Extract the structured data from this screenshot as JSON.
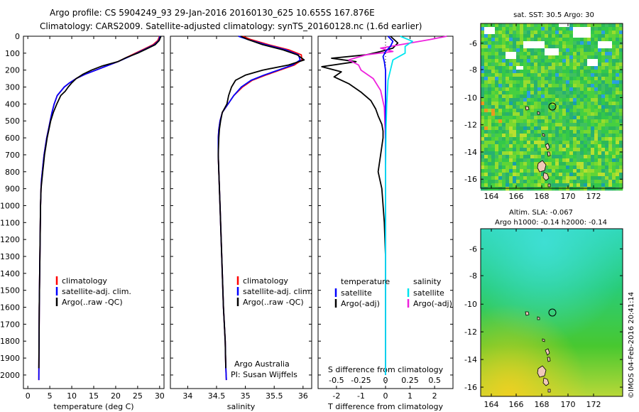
{
  "header": {
    "line1": "Argo profile: CS 5904249_93 29-Jan-2016 20160130_625 10.655S 167.876E",
    "line2": "Climatology: CARS2009. Satellite-adjusted climatology: synTS_20160128.nc (1.6d earlier)"
  },
  "colors": {
    "climatology": "#ff0000",
    "satellite": "#0000ff",
    "argo": "#000000",
    "salinity_sat": "#00e5ee",
    "salinity_argo": "#ee22dd"
  },
  "chart_data": [
    {
      "type": "line",
      "xlabel": "temperature (deg C)",
      "xlim": [
        -1,
        31
      ],
      "xticks": [
        0,
        5,
        10,
        15,
        20,
        25,
        30
      ],
      "ylim": [
        2080,
        0
      ],
      "yticks": [
        0,
        100,
        200,
        300,
        400,
        500,
        600,
        700,
        800,
        900,
        1000,
        1100,
        1200,
        1300,
        1400,
        1500,
        1600,
        1700,
        1800,
        1900,
        2000
      ],
      "legend": [
        "climatology",
        "satellite-adj. clim.",
        "Argo(..raw -QC)"
      ],
      "series": [
        {
          "name": "climatology",
          "x": [
            30.0,
            29.6,
            28.5,
            26.5,
            24.5,
            22.5,
            20.5,
            18.0,
            15.5,
            13.0,
            11.0,
            9.5,
            8.3,
            7.5,
            6.7,
            6.0,
            5.5,
            5.1,
            4.7,
            4.3,
            4.0,
            3.7,
            3.5,
            3.3,
            3.1,
            3.0,
            2.9,
            2.8,
            2.7,
            2.6,
            2.55,
            2.5
          ],
          "y": [
            0,
            25,
            50,
            75,
            100,
            125,
            150,
            175,
            200,
            225,
            250,
            275,
            300,
            325,
            350,
            400,
            450,
            500,
            550,
            600,
            650,
            700,
            750,
            800,
            850,
            900,
            1000,
            1200,
            1400,
            1600,
            1800,
            2030
          ]
        },
        {
          "name": "satellite-adj. clim.",
          "x": [
            30.1,
            29.8,
            28.8,
            26.8,
            24.8,
            22.7,
            20.5,
            18.0,
            15.5,
            13.0,
            11.0,
            9.5,
            8.3,
            7.5,
            6.7,
            6.0,
            5.5,
            5.1,
            4.7,
            4.3,
            4.0,
            3.7,
            3.5,
            3.3,
            3.1,
            3.0,
            2.9,
            2.8,
            2.7,
            2.6,
            2.55,
            2.5
          ],
          "y": [
            0,
            25,
            50,
            75,
            100,
            125,
            150,
            175,
            200,
            225,
            250,
            275,
            300,
            325,
            350,
            400,
            450,
            500,
            550,
            600,
            650,
            700,
            750,
            800,
            850,
            900,
            1000,
            1200,
            1400,
            1600,
            1800,
            2030
          ]
        },
        {
          "name": "Argo(..raw -QC)",
          "x": [
            30.3,
            29.9,
            29.0,
            27.0,
            25.0,
            22.5,
            20.5,
            17.0,
            14.5,
            12.5,
            11.0,
            10.0,
            9.2,
            8.5,
            7.5,
            6.6,
            5.8,
            5.2,
            4.8,
            4.4,
            4.1,
            3.8,
            3.6,
            3.4,
            3.2,
            3.0,
            2.9,
            2.8,
            2.7,
            2.6,
            2.55,
            2.5
          ],
          "y": [
            0,
            25,
            50,
            75,
            100,
            125,
            150,
            175,
            200,
            225,
            250,
            275,
            300,
            325,
            350,
            400,
            450,
            500,
            550,
            600,
            650,
            700,
            750,
            800,
            850,
            900,
            1000,
            1200,
            1400,
            1600,
            1800,
            1960
          ]
        }
      ]
    },
    {
      "type": "line",
      "xlabel": "salinity",
      "xlim": [
        33.7,
        36.15
      ],
      "xticks": [
        34,
        34.5,
        35,
        35.5,
        36
      ],
      "ylim": [
        2080,
        0
      ],
      "legend": [
        "climatology",
        "satellite-adj. clim.",
        "Argo(..raw -QC)"
      ],
      "annotation": [
        "Argo Australia",
        "PI: Susan Wijffels"
      ],
      "series": [
        {
          "name": "climatology",
          "x": [
            34.95,
            35.1,
            35.4,
            35.75,
            35.97,
            35.98,
            35.85,
            35.6,
            35.35,
            35.12,
            34.95,
            34.8,
            34.7,
            34.6,
            34.56,
            34.54,
            34.53,
            34.53,
            34.54,
            34.56,
            34.58,
            34.6,
            34.62,
            34.65,
            34.66,
            34.67
          ],
          "y": [
            0,
            20,
            50,
            80,
            110,
            140,
            170,
            200,
            230,
            260,
            300,
            350,
            400,
            450,
            500,
            550,
            600,
            700,
            800,
            1000,
            1200,
            1400,
            1600,
            1800,
            1950,
            2030
          ]
        },
        {
          "name": "satellite-adj. clim.",
          "x": [
            34.88,
            35.05,
            35.35,
            35.7,
            35.92,
            35.95,
            35.82,
            35.57,
            35.32,
            35.1,
            34.93,
            34.8,
            34.7,
            34.6,
            34.56,
            34.54,
            34.53,
            34.53,
            34.54,
            34.56,
            34.58,
            34.6,
            34.62,
            34.65,
            34.66,
            34.67
          ],
          "y": [
            0,
            20,
            50,
            80,
            110,
            140,
            170,
            200,
            230,
            260,
            300,
            350,
            400,
            450,
            500,
            550,
            600,
            700,
            800,
            1000,
            1200,
            1400,
            1600,
            1800,
            1950,
            2030
          ]
        },
        {
          "name": "Argo(..raw -QC)",
          "x": [
            34.92,
            35.05,
            35.3,
            35.65,
            35.9,
            36.02,
            35.75,
            35.3,
            35.0,
            34.83,
            34.76,
            34.71,
            34.68,
            34.6,
            34.57,
            34.55,
            34.54,
            34.53,
            34.54,
            34.56,
            34.58,
            34.6,
            34.62,
            34.65,
            34.66
          ],
          "y": [
            0,
            20,
            50,
            80,
            110,
            140,
            170,
            200,
            230,
            260,
            300,
            350,
            400,
            450,
            500,
            550,
            600,
            700,
            800,
            1000,
            1200,
            1400,
            1600,
            1800,
            1960
          ]
        }
      ]
    },
    {
      "type": "line",
      "xlabel": "T difference from climatology",
      "xlabel_top": "S difference from climatology",
      "xlim": [
        -2.75,
        2.75
      ],
      "xticks": [
        -2,
        -1,
        0,
        1,
        2
      ],
      "xticks_top": [
        "-0.5",
        "-0.25",
        "0",
        "0.25",
        "0.5"
      ],
      "ylim": [
        2080,
        0
      ],
      "legend_headers": [
        "temperature",
        "salinity"
      ],
      "legend": [
        "satellite",
        "Argo(-adj)",
        "satellite",
        "Argo(-adj)"
      ],
      "series": [
        {
          "name": "satellite",
          "x": [
            0.1,
            0.3,
            0.2,
            0.0,
            -0.1,
            -0.05,
            0.0,
            0.0,
            0.0,
            0.0,
            0.0,
            0.0,
            0.0,
            0.0,
            0.0
          ],
          "y": [
            0,
            30,
            60,
            90,
            120,
            150,
            200,
            250,
            300,
            400,
            600,
            800,
            1200,
            1600,
            2000
          ]
        },
        {
          "name": "Argo(-adj)",
          "x": [
            0.2,
            0.5,
            0.3,
            -0.2,
            -0.8,
            -2.2,
            -1.2,
            -2.6,
            -1.8,
            -2.1,
            -1.5,
            -1.0,
            -0.6,
            -0.4,
            -0.3,
            -0.15,
            -0.1,
            -0.1,
            -0.2,
            -0.3,
            -0.15,
            -0.05,
            0.0,
            0.0,
            0.0
          ],
          "y": [
            0,
            40,
            70,
            90,
            110,
            130,
            150,
            180,
            210,
            240,
            280,
            330,
            380,
            430,
            470,
            520,
            560,
            600,
            700,
            800,
            900,
            1100,
            1300,
            1500,
            1960
          ]
        },
        {
          "name": "salinity satellite",
          "x": [
            0.6,
            1.1,
            0.8,
            0.8,
            0.3,
            0.2,
            0.1,
            0.08,
            0.05,
            0.02,
            0.0,
            0.0,
            0.0
          ],
          "y": [
            0,
            30,
            60,
            100,
            140,
            200,
            260,
            320,
            400,
            550,
            800,
            1200,
            2000
          ]
        },
        {
          "name": "salinity Argo(-adj)",
          "x": [
            2.5,
            1.8,
            0.8,
            -0.2,
            0.3,
            -0.8,
            -1.5,
            -1.1,
            -1.0,
            -0.5,
            -0.2,
            -0.05,
            0.0
          ],
          "y": [
            0,
            20,
            45,
            70,
            90,
            110,
            140,
            170,
            200,
            250,
            320,
            420,
            600
          ]
        }
      ]
    }
  ],
  "maps": {
    "sst": {
      "title": "sat. SST: 30.5 Argo: 30",
      "lon_ticks": [
        "164",
        "166",
        "168",
        "170",
        "172"
      ],
      "lat_ticks": [
        "-6",
        "-8",
        "-10",
        "-12",
        "-14",
        "-16"
      ]
    },
    "sla": {
      "title1": "Altim. SLA: -0.067",
      "title2": "Argo h1000: -0.14 h2000: -0.14",
      "lon_ticks": [
        "164",
        "166",
        "168",
        "170",
        "172"
      ],
      "lat_ticks": [
        "-6",
        "-8",
        "-10",
        "-12",
        "-14",
        "-16"
      ]
    }
  },
  "credit": "©IMOS 04-Feb-2016 20:41:14"
}
